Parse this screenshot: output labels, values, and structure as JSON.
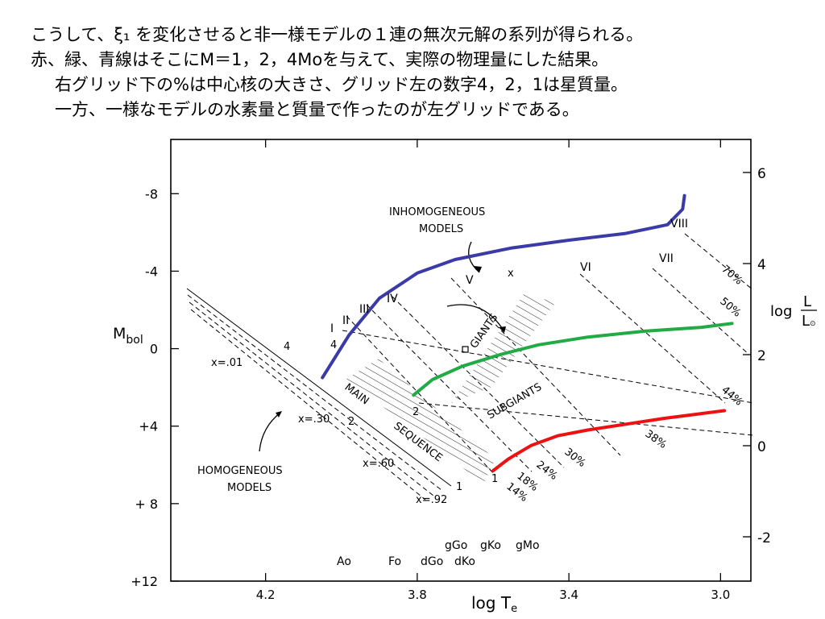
{
  "caption": {
    "line1": "こうして、ξ₁ を変化させると非一様モデルの１連の無次元解の系列が得られる。",
    "line2": "赤、緑、青線はそこにM＝1，2，4Moを与えて、実際の物理量にした結果。",
    "line3": "右グリッド下の%は中心核の大きさ、グリッド左の数字4，2，1は星質量。",
    "line4": "一方、一様なモデルの水素量と質量で作ったのが左グリッドである。"
  },
  "chart_data": {
    "type": "line",
    "xlabel": "log T",
    "xlabel_sub": "e",
    "ylabel_left": "M",
    "ylabel_left_sub": "bol",
    "ylabel_right_num": "L",
    "ylabel_right_den": "L",
    "ylabel_right_prefix": "log",
    "xlim": [
      4.45,
      2.92
    ],
    "ylim_left": [
      12,
      -10.8
    ],
    "x_ticks": [
      "4.2",
      "3.8",
      "3.4",
      "3.0"
    ],
    "x_tick_values": [
      4.2,
      3.8,
      3.4,
      3.0
    ],
    "y_left_ticks": [
      "-8",
      "-4",
      "0",
      "+4",
      "+ 8",
      "+12"
    ],
    "y_left_tick_values": [
      -8,
      -4,
      0,
      4,
      8,
      12
    ],
    "y_right_ticks": [
      "6",
      "4",
      "2",
      "0",
      "-2"
    ],
    "y_right_tick_values": [
      6,
      4,
      2,
      0,
      -2
    ],
    "series": [
      {
        "color": "#3a3aa8",
        "x": [
          4.05,
          3.98,
          3.9,
          3.8,
          3.7,
          3.55,
          3.4,
          3.25,
          3.14,
          3.1,
          3.095
        ],
        "y": [
          1.5,
          -0.7,
          -2.6,
          -3.9,
          -4.6,
          -5.2,
          -5.6,
          -5.95,
          -6.4,
          -7.2,
          -7.9
        ]
      },
      {
        "color": "#22aa44",
        "x": [
          3.81,
          3.76,
          3.68,
          3.58,
          3.48,
          3.35,
          3.2,
          3.05,
          2.97
        ],
        "y": [
          2.4,
          1.6,
          0.9,
          0.3,
          -0.2,
          -0.6,
          -0.9,
          -1.1,
          -1.3
        ]
      },
      {
        "color": "#ee1111",
        "x": [
          3.6,
          3.56,
          3.5,
          3.43,
          3.35,
          3.25,
          3.15,
          3.05,
          2.99
        ],
        "y": [
          6.3,
          5.7,
          5.0,
          4.5,
          4.2,
          3.9,
          3.6,
          3.35,
          3.2
        ]
      }
    ],
    "annotations": {
      "inhomogeneous": [
        "INHOMOGENEOUS",
        "MODELS"
      ],
      "homogeneous": [
        "HOMOGENEOUS",
        "MODELS"
      ],
      "giants": "GIANTS",
      "subgiants": "SUBGIANTS",
      "main_sequence": [
        "MAIN",
        "SEQUENCE"
      ],
      "roman": [
        "I",
        "II",
        "III",
        "IV",
        "V",
        "VI",
        "VII",
        "VIII"
      ],
      "x_marks": [
        "x=.01",
        "x=.30",
        "x=.60",
        "x=.92"
      ],
      "mass_left": [
        "4",
        "2",
        "1"
      ],
      "mass_left_upper": "4",
      "mass_right": [
        "4",
        "2",
        "1"
      ],
      "percent": [
        "70%",
        "50%",
        "44%",
        "38%",
        "30%",
        "24%",
        "18%",
        "14%"
      ],
      "cross": "x",
      "spectral_upper": [
        "gGo",
        "gKo",
        "gMo"
      ],
      "spectral_lower": [
        "Ao",
        "Fo",
        "dGo",
        "dKo"
      ]
    }
  }
}
